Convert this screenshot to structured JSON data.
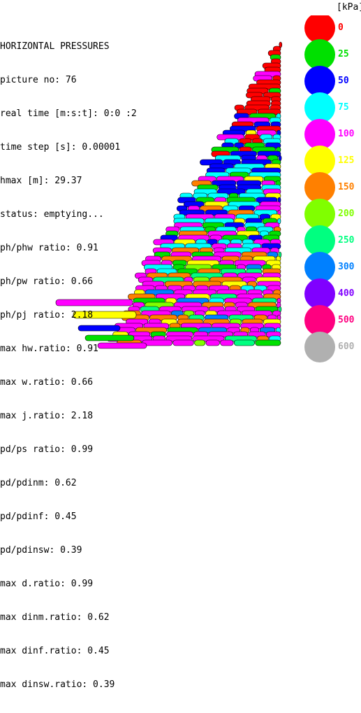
{
  "title": "HORIZONTAL PRESSURES",
  "info_lines": [
    "picture no: 76",
    "real time [m:s:t]: 0:0 :2",
    "time step [s]: 0.00001",
    "hmax [m]: 29.37",
    "status: emptying...",
    "ph/phw ratio: 0.91",
    "ph/pw ratio: 0.66",
    "ph/pj ratio: 2.18",
    "max hw.ratio: 0.91",
    "max w.ratio: 0.66",
    "max j.ratio: 2.18",
    "pd/ps ratio: 0.99",
    "pd/pdinm: 0.62",
    "pd/pdinf: 0.45",
    "pd/pdinsw: 0.39",
    "max d.ratio: 0.99",
    "max dinm.ratio: 0.62",
    "max dinf.ratio: 0.45",
    "max dinsw.ratio: 0.39"
  ],
  "legend": {
    "unit": "[kPa]",
    "items": [
      {
        "label": "0",
        "color": "#ff0000"
      },
      {
        "label": "25",
        "color": "#00e000"
      },
      {
        "label": "50",
        "color": "#0000ff"
      },
      {
        "label": "75",
        "color": "#00ffff"
      },
      {
        "label": "100",
        "color": "#ff00ff"
      },
      {
        "label": "125",
        "color": "#ffff00"
      },
      {
        "label": "150",
        "color": "#ff8000"
      },
      {
        "label": "200",
        "color": "#80ff00"
      },
      {
        "label": "250",
        "color": "#00ff80"
      },
      {
        "label": "300",
        "color": "#0080ff"
      },
      {
        "label": "400",
        "color": "#8000ff"
      },
      {
        "label": "500",
        "color": "#ff0080"
      },
      {
        "label": "600",
        "color": "#b0b0b0"
      }
    ]
  }
}
